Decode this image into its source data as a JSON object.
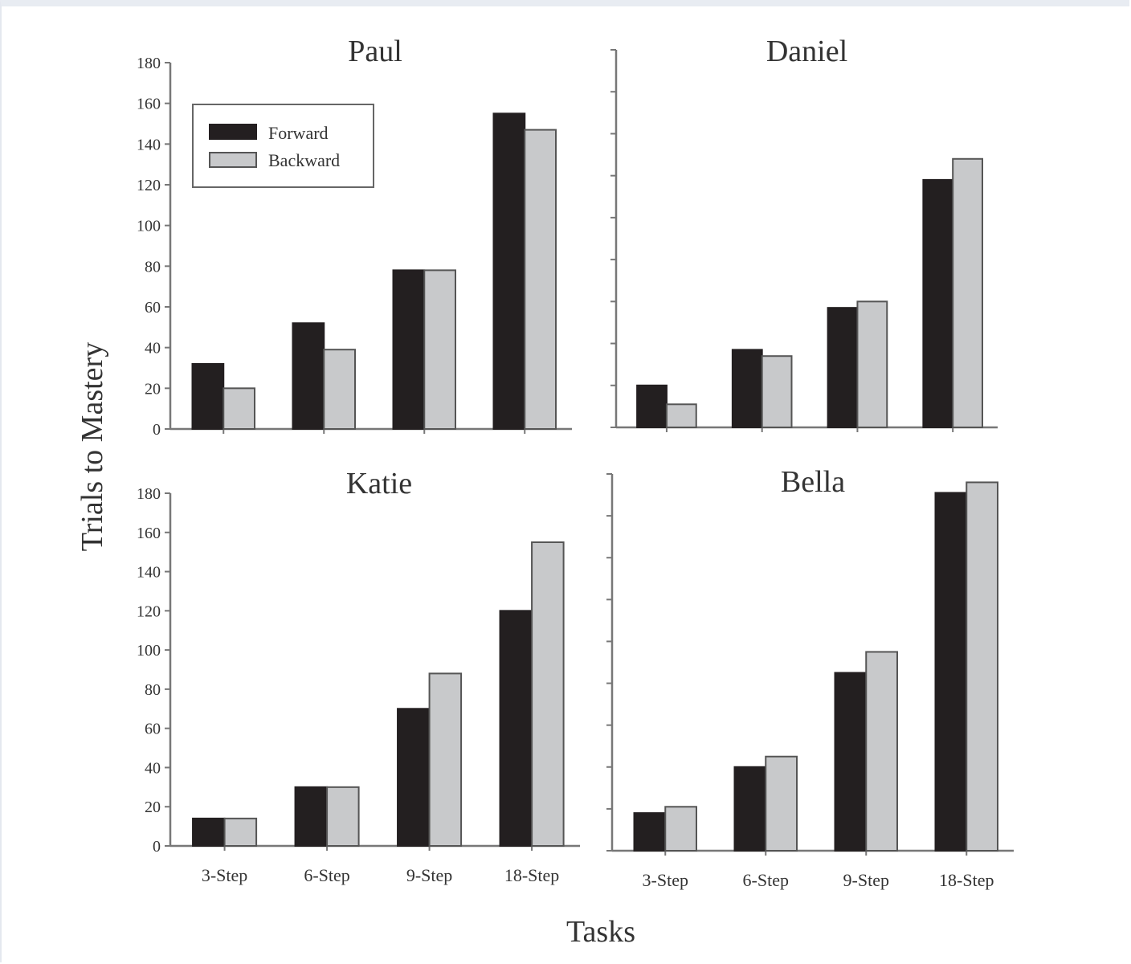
{
  "chart_data": [
    {
      "type": "bar",
      "title": "Paul",
      "categories": [
        "3-Step",
        "6-Step",
        "9-Step",
        "18-Step"
      ],
      "ylim": [
        0,
        180
      ],
      "yticks": [
        0,
        20,
        40,
        60,
        80,
        100,
        120,
        140,
        160,
        180
      ],
      "series": [
        {
          "name": "Forward",
          "values": [
            32,
            52,
            78,
            155
          ]
        },
        {
          "name": "Backward",
          "values": [
            20,
            39,
            78,
            147
          ]
        }
      ]
    },
    {
      "type": "bar",
      "title": "Daniel",
      "categories": [
        "3-Step",
        "6-Step",
        "9-Step",
        "18-Step"
      ],
      "ylim": [
        0,
        180
      ],
      "series": [
        {
          "name": "Forward",
          "values": [
            20,
            37,
            57,
            118
          ]
        },
        {
          "name": "Backward",
          "values": [
            11,
            34,
            60,
            128
          ]
        }
      ]
    },
    {
      "type": "bar",
      "title": "Katie",
      "categories": [
        "3-Step",
        "6-Step",
        "9-Step",
        "18-Step"
      ],
      "ylim": [
        0,
        180
      ],
      "yticks": [
        0,
        20,
        40,
        60,
        80,
        100,
        120,
        140,
        160,
        180
      ],
      "series": [
        {
          "name": "Forward",
          "values": [
            14,
            30,
            70,
            120
          ]
        },
        {
          "name": "Backward",
          "values": [
            14,
            30,
            88,
            155
          ]
        }
      ]
    },
    {
      "type": "bar",
      "title": "Bella",
      "categories": [
        "3-Step",
        "6-Step",
        "9-Step",
        "18-Step"
      ],
      "ylim": [
        0,
        180
      ],
      "series": [
        {
          "name": "Forward",
          "values": [
            18,
            40,
            85,
            171
          ]
        },
        {
          "name": "Backward",
          "values": [
            21,
            45,
            95,
            176
          ]
        }
      ]
    }
  ],
  "shared": {
    "ylabel": "Trials to Mastery",
    "xlabel": "Tasks",
    "legend": [
      "Forward",
      "Backward"
    ],
    "legend_position": "top-left of first panel"
  },
  "colors": {
    "Forward": "#231f20",
    "Backward": "#c8c9cb",
    "axis": "#777777"
  }
}
